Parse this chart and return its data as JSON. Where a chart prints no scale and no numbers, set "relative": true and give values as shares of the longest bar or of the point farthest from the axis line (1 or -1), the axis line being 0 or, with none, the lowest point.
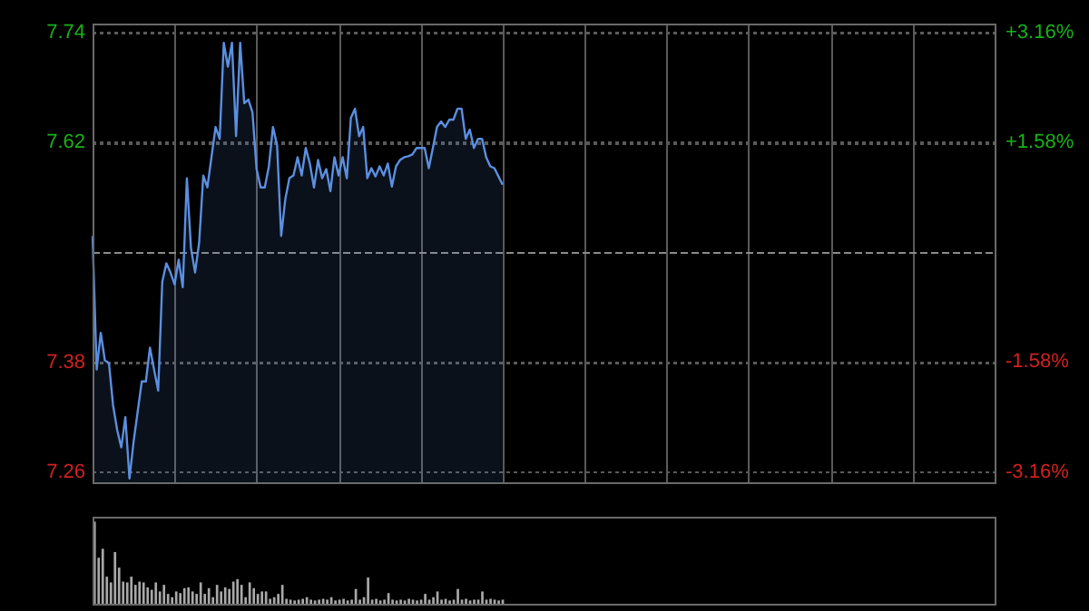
{
  "chart_data": [
    {
      "type": "area",
      "categories": [
        null,
        null,
        null,
        null,
        null,
        null,
        null,
        null,
        null,
        null,
        null,
        null,
        null,
        null,
        null,
        null,
        null,
        null,
        null,
        null,
        null,
        null,
        null,
        null,
        null,
        null,
        null,
        null,
        null,
        null,
        null,
        null,
        null,
        null,
        null,
        null,
        null,
        null,
        null,
        null,
        null,
        null,
        null,
        null,
        null,
        null,
        null,
        null,
        null,
        null,
        null,
        null,
        null,
        null,
        null,
        null,
        null,
        null,
        null,
        null,
        null,
        null,
        null,
        null,
        null,
        null,
        null,
        null,
        null,
        null,
        null,
        null,
        null,
        null,
        null,
        null,
        null,
        null,
        null,
        null,
        null,
        null,
        null,
        null,
        null,
        null,
        null,
        null,
        null,
        null,
        null,
        null,
        null,
        null,
        null,
        null,
        null,
        null,
        null,
        null,
        null,
        null,
        null,
        null,
        null,
        null,
        null,
        null,
        null,
        null,
        null,
        null,
        null,
        null,
        null,
        null,
        null,
        null,
        null,
        null,
        null,
        null,
        null,
        null,
        null,
        null,
        null,
        null,
        null,
        null,
        null,
        null,
        null,
        null,
        null,
        null,
        null,
        null,
        null,
        null,
        null,
        null,
        null,
        null,
        null,
        null,
        null,
        null,
        null,
        null,
        null,
        null,
        null,
        null,
        null,
        null,
        null,
        null,
        null,
        null,
        null,
        null,
        null,
        null,
        null,
        null,
        null,
        null,
        null,
        null,
        null,
        null,
        null,
        null,
        null,
        null,
        null,
        null,
        null,
        null,
        null,
        null,
        null,
        null,
        null,
        null,
        null,
        null,
        null,
        null,
        null,
        null,
        null,
        null,
        null,
        null,
        null,
        null,
        null,
        null,
        null,
        null,
        null,
        null,
        null,
        null,
        null,
        null,
        null,
        null,
        null,
        null,
        null,
        null,
        null,
        null,
        null,
        null,
        null,
        null,
        null
      ],
      "series": [
        {
          "color": "#5b8fe0",
          "values": [
            7.518,
            7.372,
            7.412,
            7.382,
            7.379,
            7.333,
            7.306,
            7.287,
            7.32,
            7.253,
            7.293,
            7.326,
            7.359,
            7.359,
            7.396,
            7.372,
            7.349,
            7.468,
            7.488,
            7.478,
            7.465,
            7.492,
            7.462,
            7.581,
            7.505,
            7.478,
            7.511,
            7.584,
            7.571,
            7.604,
            7.637,
            7.624,
            7.729,
            7.703,
            7.729,
            7.627,
            7.729,
            7.663,
            7.667,
            7.653,
            7.591,
            7.571,
            7.571,
            7.594,
            7.637,
            7.617,
            7.518,
            7.558,
            7.581,
            7.584,
            7.604,
            7.584,
            7.614,
            7.597,
            7.571,
            7.601,
            7.581,
            7.591,
            7.567,
            7.604,
            7.584,
            7.604,
            7.581,
            7.647,
            7.657,
            7.627,
            7.637,
            7.581,
            7.592,
            7.583,
            7.594,
            7.584,
            7.597,
            7.572,
            7.594,
            7.601,
            7.604,
            7.605,
            7.607,
            7.614,
            7.614,
            7.614,
            7.592,
            7.614,
            7.637,
            7.643,
            7.637,
            7.645,
            7.645,
            7.657,
            7.657,
            7.624,
            7.634,
            7.614,
            7.624,
            7.624,
            7.604,
            7.594,
            7.592,
            7.583,
            7.574,
            null,
            null,
            null,
            null,
            null,
            null,
            null,
            null,
            null,
            null,
            null,
            null,
            null,
            null,
            null,
            null,
            null,
            null,
            null,
            null,
            null,
            null,
            null,
            null,
            null,
            null,
            null,
            null,
            null,
            null,
            null,
            null,
            null,
            null,
            null,
            null,
            null,
            null,
            null,
            null,
            null,
            null,
            null,
            null,
            null,
            null,
            null,
            null,
            null,
            null,
            null,
            null,
            null,
            null,
            null,
            null,
            null,
            null,
            null,
            null,
            null,
            null,
            null,
            null,
            null,
            null,
            null,
            null,
            null,
            null,
            null,
            null,
            null,
            null,
            null,
            null,
            null,
            null,
            null,
            null,
            null,
            null,
            null,
            null,
            null,
            null,
            null,
            null,
            null,
            null,
            null,
            null,
            null,
            null,
            null,
            null,
            null,
            null,
            null,
            null,
            null,
            null,
            null,
            null,
            null,
            null,
            null,
            null,
            null,
            null,
            null,
            null,
            null,
            null,
            null,
            null,
            null,
            null,
            null,
            null
          ]
        }
      ],
      "ylim": [
        7.248,
        7.75
      ],
      "yticks": [
        7.26,
        7.38,
        7.62,
        7.74
      ],
      "y2lim": [
        -3.32,
        3.29
      ],
      "y2ticks": [
        {
          "value": -3.16,
          "label": "-3.16%"
        },
        {
          "value": -1.58,
          "label": "-1.58%"
        },
        {
          "value": 1.58,
          "label": "+1.58%"
        },
        {
          "value": 3.16,
          "label": "+3.16%"
        }
      ],
      "ref_lines": [
        {
          "axis": "y2",
          "value": 0,
          "line_style": "dashed"
        }
      ],
      "tick_labels": "y",
      "grid": true,
      "legend": false
    },
    {
      "type": "bar",
      "relative": true,
      "categories": [
        null,
        null,
        null,
        null,
        null,
        null,
        null,
        null,
        null,
        null,
        null,
        null,
        null,
        null,
        null,
        null,
        null,
        null,
        null,
        null,
        null,
        null,
        null,
        null,
        null,
        null,
        null,
        null,
        null,
        null,
        null,
        null,
        null,
        null,
        null,
        null,
        null,
        null,
        null,
        null,
        null,
        null,
        null,
        null,
        null,
        null,
        null,
        null,
        null,
        null,
        null,
        null,
        null,
        null,
        null,
        null,
        null,
        null,
        null,
        null,
        null,
        null,
        null,
        null,
        null,
        null,
        null,
        null,
        null,
        null,
        null,
        null,
        null,
        null,
        null,
        null,
        null,
        null,
        null,
        null,
        null,
        null,
        null,
        null,
        null,
        null,
        null,
        null,
        null,
        null,
        null,
        null,
        null,
        null,
        null,
        null,
        null,
        null,
        null,
        null,
        null,
        null,
        null,
        null,
        null,
        null,
        null,
        null,
        null,
        null,
        null,
        null,
        null,
        null,
        null,
        null,
        null,
        null,
        null,
        null,
        null,
        null,
        null,
        null,
        null,
        null,
        null,
        null,
        null,
        null,
        null,
        null,
        null,
        null,
        null,
        null,
        null,
        null,
        null,
        null,
        null,
        null,
        null,
        null,
        null,
        null,
        null,
        null,
        null,
        null,
        null,
        null,
        null,
        null,
        null,
        null,
        null,
        null,
        null,
        null,
        null,
        null,
        null,
        null,
        null,
        null,
        null,
        null,
        null,
        null,
        null,
        null,
        null,
        null,
        null,
        null,
        null,
        null,
        null,
        null,
        null,
        null,
        null,
        null,
        null,
        null,
        null,
        null,
        null,
        null,
        null,
        null,
        null,
        null,
        null,
        null,
        null,
        null,
        null,
        null,
        null,
        null,
        null,
        null,
        null,
        null,
        null,
        null,
        null,
        null,
        null,
        null,
        null,
        null,
        null,
        null,
        null,
        null,
        null,
        null,
        null
      ],
      "series": [
        {
          "color": "#a8a8a8",
          "values": [
            1.0,
            0.56,
            0.67,
            0.33,
            0.26,
            0.63,
            0.44,
            0.27,
            0.26,
            0.33,
            0.23,
            0.27,
            0.26,
            0.2,
            0.17,
            0.26,
            0.15,
            0.23,
            0.12,
            0.08,
            0.15,
            0.13,
            0.19,
            0.2,
            0.15,
            0.12,
            0.26,
            0.12,
            0.19,
            0.08,
            0.23,
            0.15,
            0.2,
            0.18,
            0.27,
            0.3,
            0.23,
            0.08,
            0.26,
            0.19,
            0.12,
            0.15,
            0.15,
            0.06,
            0.08,
            0.12,
            0.23,
            0.06,
            0.05,
            0.04,
            0.05,
            0.06,
            0.08,
            0.05,
            0.04,
            0.05,
            0.06,
            0.05,
            0.08,
            0.04,
            0.05,
            0.06,
            0.04,
            0.05,
            0.18,
            0.05,
            0.08,
            0.32,
            0.05,
            0.06,
            0.04,
            0.05,
            0.13,
            0.05,
            0.04,
            0.05,
            0.04,
            0.06,
            0.05,
            0.04,
            0.05,
            0.12,
            0.05,
            0.08,
            0.15,
            0.05,
            0.06,
            0.04,
            0.05,
            0.18,
            0.05,
            0.06,
            0.04,
            0.05,
            0.05,
            0.15,
            0.05,
            0.06,
            0.05,
            0.04,
            0.05,
            null,
            null,
            null,
            null,
            null,
            null,
            null,
            null,
            null,
            null,
            null,
            null,
            null,
            null,
            null,
            null,
            null,
            null,
            null,
            null,
            null,
            null,
            null,
            null,
            null,
            null,
            null,
            null,
            null,
            null,
            null,
            null,
            null,
            null,
            null,
            null,
            null,
            null,
            null,
            null,
            null,
            null,
            null,
            null,
            null,
            null,
            null,
            null,
            null,
            null,
            null,
            null,
            null,
            null,
            null,
            null,
            null,
            null,
            null,
            null,
            null,
            null,
            null,
            null,
            null,
            null,
            null,
            null,
            null,
            null,
            null,
            null,
            null,
            null,
            null,
            null,
            null,
            null,
            null,
            null,
            null,
            null,
            null,
            null,
            null,
            null,
            null,
            null,
            null,
            null,
            null,
            null,
            null,
            null,
            null,
            null,
            null,
            null,
            null,
            null,
            null,
            null,
            null,
            null,
            null,
            null,
            null,
            null,
            null,
            null,
            null,
            null,
            null,
            null,
            null,
            null,
            null,
            null,
            null,
            null
          ]
        }
      ],
      "tick_labels": false,
      "legend": false
    }
  ]
}
